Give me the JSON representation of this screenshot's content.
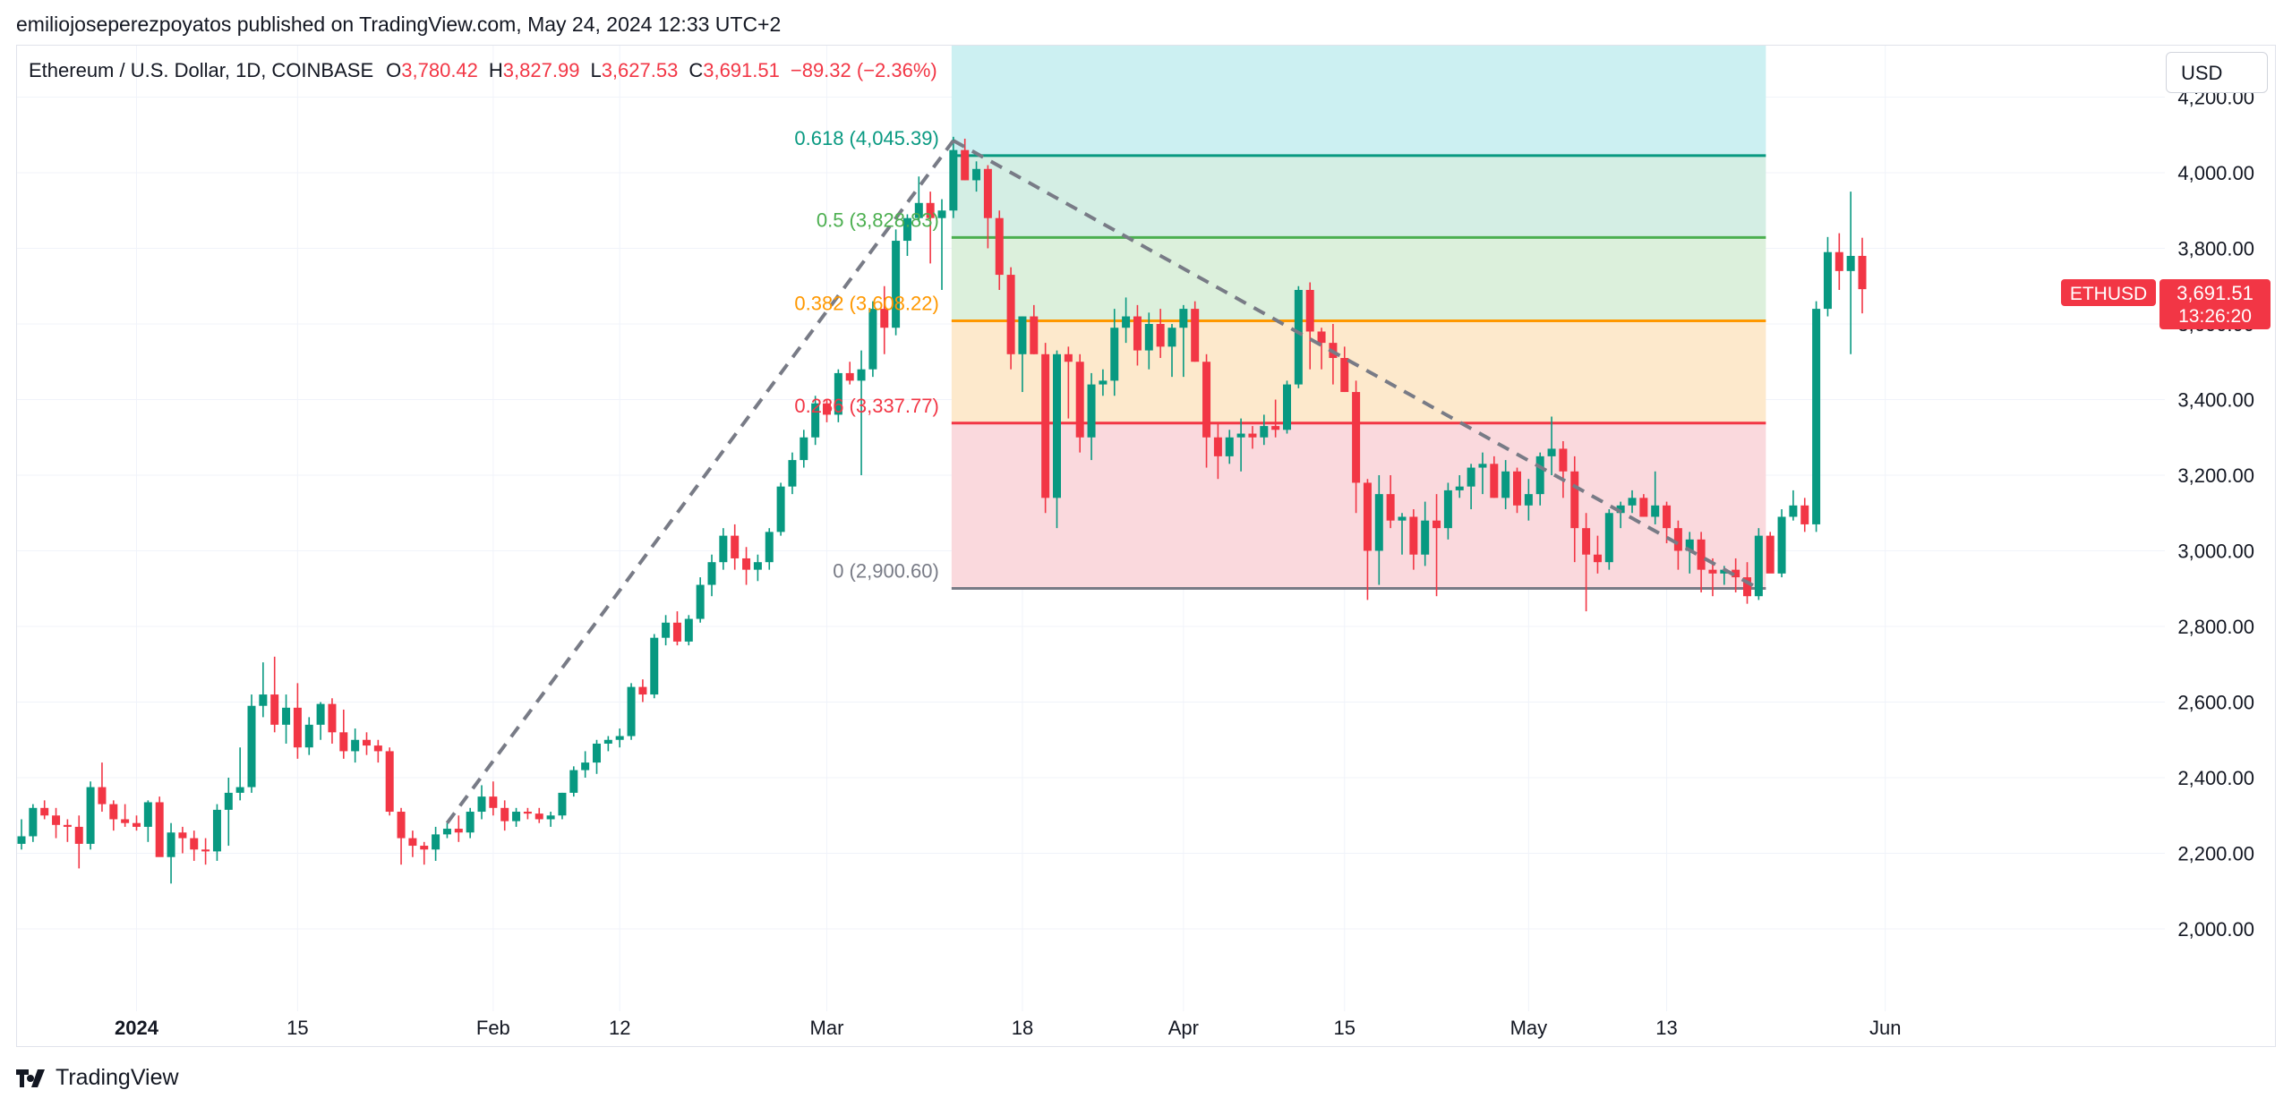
{
  "byline": "emiliojoseperezpoyatos published on TradingView.com, May 24, 2024 12:33 UTC+2",
  "legend": {
    "symbol": "Ethereum / U.S. Dollar, 1D, COINBASE",
    "o_label": "O",
    "o": "3,780.42",
    "h_label": "H",
    "h": "3,827.99",
    "l_label": "L",
    "l": "3,627.53",
    "c_label": "C",
    "c": "3,691.51",
    "change": "−89.32 (−2.36%)"
  },
  "currency_button": "USD",
  "footer_brand": "TradingView",
  "price_tag": {
    "symbol": "ETHUSD",
    "price": "3,691.51",
    "countdown": "13:26:20"
  },
  "colors": {
    "up": "#089981",
    "down": "#f23645",
    "grid": "#f0f3fa",
    "text": "#131722"
  },
  "chart_data": {
    "type": "candlestick",
    "y_ticks": [
      "4,200.00",
      "4,000.00",
      "3,800.00",
      "3,600.00",
      "3,400.00",
      "3,200.00",
      "3,000.00",
      "2,800.00",
      "2,600.00",
      "2,400.00",
      "2,200.00",
      "2,000.00"
    ],
    "y_tick_values": [
      4200,
      4000,
      3800,
      3600,
      3400,
      3200,
      3000,
      2800,
      2600,
      2400,
      2200,
      2000
    ],
    "x_ticks": [
      {
        "label": "2024",
        "index": 10,
        "bold": true
      },
      {
        "label": "15",
        "index": 24
      },
      {
        "label": "Feb",
        "index": 41
      },
      {
        "label": "12",
        "index": 52
      },
      {
        "label": "Mar",
        "index": 70
      },
      {
        "label": "18",
        "index": 87
      },
      {
        "label": "Apr",
        "index": 101
      },
      {
        "label": "15",
        "index": 115
      },
      {
        "label": "May",
        "index": 131
      },
      {
        "label": "13",
        "index": 143
      },
      {
        "label": "Jun",
        "index": 162
      }
    ],
    "fib_levels": [
      {
        "label": "0.618 (4,045.39)",
        "price": 4045.39,
        "color": "#089981"
      },
      {
        "label": "0.5 (3,828.83)",
        "price": 3828.83,
        "color": "#4caf50"
      },
      {
        "label": "0.382 (3,608.22)",
        "price": 3608.22,
        "color": "#ff9800"
      },
      {
        "label": "0.236 (3,337.77)",
        "price": 3337.77,
        "color": "#f23645"
      },
      {
        "label": "0 (2,900.60)",
        "price": 2900.6,
        "color": "#787b86"
      }
    ],
    "fib_zone_colors": [
      "#ccf0f2",
      "#d4eee4",
      "#dcf0dc",
      "#fde9cc",
      "#fad9dd"
    ],
    "fib_start_index": 81,
    "fib_end_index": 151,
    "fib_top_price": 4400,
    "trendlines": [
      {
        "from": {
          "index": 37,
          "price": 2280
        },
        "to": {
          "index": 81,
          "price": 4085
        }
      },
      {
        "from": {
          "index": 81,
          "price": 4085
        },
        "to": {
          "index": 151,
          "price": 2900
        }
      }
    ],
    "ohlc": [
      [
        2225,
        2290,
        2210,
        2245
      ],
      [
        2245,
        2330,
        2230,
        2320
      ],
      [
        2320,
        2340,
        2290,
        2300
      ],
      [
        2300,
        2320,
        2240,
        2275
      ],
      [
        2275,
        2290,
        2230,
        2270
      ],
      [
        2270,
        2300,
        2160,
        2225
      ],
      [
        2225,
        2390,
        2210,
        2375
      ],
      [
        2375,
        2440,
        2310,
        2330
      ],
      [
        2330,
        2340,
        2260,
        2290
      ],
      [
        2290,
        2330,
        2270,
        2280
      ],
      [
        2280,
        2300,
        2260,
        2270
      ],
      [
        2270,
        2340,
        2230,
        2335
      ],
      [
        2335,
        2350,
        2200,
        2190
      ],
      [
        2190,
        2280,
        2120,
        2255
      ],
      [
        2255,
        2270,
        2200,
        2240
      ],
      [
        2240,
        2260,
        2180,
        2210
      ],
      [
        2210,
        2240,
        2170,
        2205
      ],
      [
        2205,
        2330,
        2180,
        2315
      ],
      [
        2315,
        2400,
        2220,
        2360
      ],
      [
        2360,
        2480,
        2340,
        2375
      ],
      [
        2375,
        2620,
        2360,
        2590
      ],
      [
        2590,
        2705,
        2560,
        2620
      ],
      [
        2620,
        2720,
        2520,
        2540
      ],
      [
        2540,
        2620,
        2490,
        2585
      ],
      [
        2585,
        2650,
        2450,
        2480
      ],
      [
        2480,
        2560,
        2460,
        2540
      ],
      [
        2540,
        2600,
        2500,
        2595
      ],
      [
        2595,
        2610,
        2490,
        2520
      ],
      [
        2520,
        2580,
        2450,
        2470
      ],
      [
        2470,
        2530,
        2440,
        2500
      ],
      [
        2500,
        2520,
        2460,
        2485
      ],
      [
        2485,
        2500,
        2440,
        2470
      ],
      [
        2470,
        2480,
        2300,
        2310
      ],
      [
        2310,
        2320,
        2170,
        2240
      ],
      [
        2240,
        2260,
        2190,
        2220
      ],
      [
        2220,
        2230,
        2170,
        2210
      ],
      [
        2210,
        2270,
        2180,
        2250
      ],
      [
        2250,
        2280,
        2240,
        2265
      ],
      [
        2265,
        2300,
        2230,
        2255
      ],
      [
        2255,
        2320,
        2240,
        2310
      ],
      [
        2310,
        2380,
        2290,
        2350
      ],
      [
        2350,
        2390,
        2300,
        2320
      ],
      [
        2320,
        2340,
        2260,
        2285
      ],
      [
        2285,
        2320,
        2270,
        2310
      ],
      [
        2310,
        2320,
        2290,
        2305
      ],
      [
        2305,
        2320,
        2280,
        2290
      ],
      [
        2290,
        2310,
        2270,
        2300
      ],
      [
        2300,
        2360,
        2290,
        2360
      ],
      [
        2360,
        2430,
        2350,
        2420
      ],
      [
        2420,
        2470,
        2400,
        2440
      ],
      [
        2440,
        2500,
        2410,
        2490
      ],
      [
        2490,
        2510,
        2470,
        2500
      ],
      [
        2500,
        2530,
        2480,
        2510
      ],
      [
        2510,
        2650,
        2500,
        2640
      ],
      [
        2640,
        2660,
        2600,
        2620
      ],
      [
        2620,
        2780,
        2610,
        2770
      ],
      [
        2770,
        2830,
        2750,
        2810
      ],
      [
        2810,
        2840,
        2750,
        2760
      ],
      [
        2760,
        2830,
        2750,
        2820
      ],
      [
        2820,
        2930,
        2810,
        2910
      ],
      [
        2910,
        2990,
        2880,
        2970
      ],
      [
        2970,
        3060,
        2950,
        3040
      ],
      [
        3040,
        3070,
        2950,
        2980
      ],
      [
        2980,
        3010,
        2910,
        2950
      ],
      [
        2950,
        2990,
        2920,
        2970
      ],
      [
        2970,
        3060,
        2950,
        3050
      ],
      [
        3050,
        3180,
        3040,
        3170
      ],
      [
        3170,
        3260,
        3150,
        3240
      ],
      [
        3240,
        3320,
        3220,
        3300
      ],
      [
        3300,
        3410,
        3280,
        3390
      ],
      [
        3390,
        3400,
        3340,
        3360
      ],
      [
        3360,
        3480,
        3340,
        3470
      ],
      [
        3470,
        3500,
        3440,
        3450
      ],
      [
        3450,
        3530,
        3200,
        3480
      ],
      [
        3480,
        3660,
        3460,
        3640
      ],
      [
        3640,
        3700,
        3520,
        3590
      ],
      [
        3590,
        3850,
        3570,
        3820
      ],
      [
        3820,
        3890,
        3780,
        3880
      ],
      [
        3880,
        3990,
        3870,
        3920
      ],
      [
        3920,
        3950,
        3760,
        3880
      ],
      [
        3880,
        3930,
        3690,
        3900
      ],
      [
        3900,
        4095,
        3880,
        4060
      ],
      [
        4060,
        4090,
        3980,
        3980
      ],
      [
        3980,
        4030,
        3950,
        4010
      ],
      [
        4010,
        4020,
        3800,
        3880
      ],
      [
        3880,
        3900,
        3690,
        3730
      ],
      [
        3730,
        3750,
        3480,
        3520
      ],
      [
        3520,
        3620,
        3420,
        3620
      ],
      [
        3620,
        3650,
        3520,
        3520
      ],
      [
        3520,
        3550,
        3100,
        3140
      ],
      [
        3140,
        3530,
        3060,
        3520
      ],
      [
        3520,
        3540,
        3350,
        3500
      ],
      [
        3500,
        3520,
        3260,
        3300
      ],
      [
        3300,
        3470,
        3240,
        3440
      ],
      [
        3440,
        3480,
        3410,
        3450
      ],
      [
        3450,
        3640,
        3410,
        3590
      ],
      [
        3590,
        3670,
        3550,
        3620
      ],
      [
        3620,
        3650,
        3490,
        3530
      ],
      [
        3530,
        3630,
        3480,
        3600
      ],
      [
        3600,
        3640,
        3510,
        3540
      ],
      [
        3540,
        3600,
        3460,
        3590
      ],
      [
        3590,
        3650,
        3460,
        3640
      ],
      [
        3640,
        3660,
        3500,
        3500
      ],
      [
        3500,
        3520,
        3220,
        3300
      ],
      [
        3300,
        3340,
        3190,
        3250
      ],
      [
        3250,
        3320,
        3230,
        3300
      ],
      [
        3300,
        3350,
        3210,
        3310
      ],
      [
        3310,
        3330,
        3270,
        3300
      ],
      [
        3300,
        3360,
        3280,
        3330
      ],
      [
        3330,
        3400,
        3300,
        3320
      ],
      [
        3320,
        3450,
        3310,
        3440
      ],
      [
        3440,
        3700,
        3430,
        3690
      ],
      [
        3690,
        3710,
        3480,
        3580
      ],
      [
        3580,
        3590,
        3480,
        3550
      ],
      [
        3550,
        3600,
        3440,
        3510
      ],
      [
        3510,
        3540,
        3420,
        3420
      ],
      [
        3420,
        3450,
        3100,
        3180
      ],
      [
        3180,
        3190,
        2870,
        3000
      ],
      [
        3000,
        3200,
        2910,
        3150
      ],
      [
        3150,
        3200,
        3060,
        3080
      ],
      [
        3080,
        3100,
        2990,
        3090
      ],
      [
        3090,
        3110,
        2950,
        2990
      ],
      [
        2990,
        3130,
        2960,
        3080
      ],
      [
        3080,
        3150,
        2880,
        3060
      ],
      [
        3060,
        3180,
        3030,
        3160
      ],
      [
        3160,
        3200,
        3140,
        3170
      ],
      [
        3170,
        3230,
        3110,
        3220
      ],
      [
        3220,
        3260,
        3150,
        3230
      ],
      [
        3230,
        3250,
        3140,
        3140
      ],
      [
        3140,
        3240,
        3110,
        3210
      ],
      [
        3210,
        3220,
        3100,
        3120
      ],
      [
        3120,
        3190,
        3080,
        3150
      ],
      [
        3150,
        3260,
        3120,
        3250
      ],
      [
        3250,
        3355,
        3200,
        3270
      ],
      [
        3270,
        3290,
        3140,
        3210
      ],
      [
        3210,
        3250,
        2970,
        3060
      ],
      [
        3060,
        3100,
        2840,
        2990
      ],
      [
        2990,
        3040,
        2940,
        2970
      ],
      [
        2970,
        3110,
        2950,
        3100
      ],
      [
        3100,
        3130,
        3060,
        3120
      ],
      [
        3120,
        3160,
        3100,
        3140
      ],
      [
        3140,
        3150,
        3090,
        3090
      ],
      [
        3090,
        3210,
        3070,
        3120
      ],
      [
        3120,
        3130,
        3020,
        3060
      ],
      [
        3060,
        3080,
        2950,
        3000
      ],
      [
        3000,
        3050,
        2940,
        3030
      ],
      [
        3030,
        3050,
        2890,
        2950
      ],
      [
        2950,
        2980,
        2880,
        2940
      ],
      [
        2940,
        2960,
        2910,
        2950
      ],
      [
        2950,
        2980,
        2890,
        2930
      ],
      [
        2930,
        2970,
        2860,
        2880
      ],
      [
        2880,
        3060,
        2870,
        3040
      ],
      [
        3040,
        3050,
        2950,
        2940
      ],
      [
        2940,
        3110,
        2930,
        3090
      ],
      [
        3090,
        3160,
        3080,
        3120
      ],
      [
        3120,
        3140,
        3050,
        3070
      ],
      [
        3070,
        3660,
        3050,
        3640
      ],
      [
        3640,
        3830,
        3620,
        3790
      ],
      [
        3790,
        3840,
        3690,
        3740
      ],
      [
        3740,
        3950,
        3520,
        3780
      ],
      [
        3780,
        3828,
        3628,
        3692
      ]
    ]
  }
}
